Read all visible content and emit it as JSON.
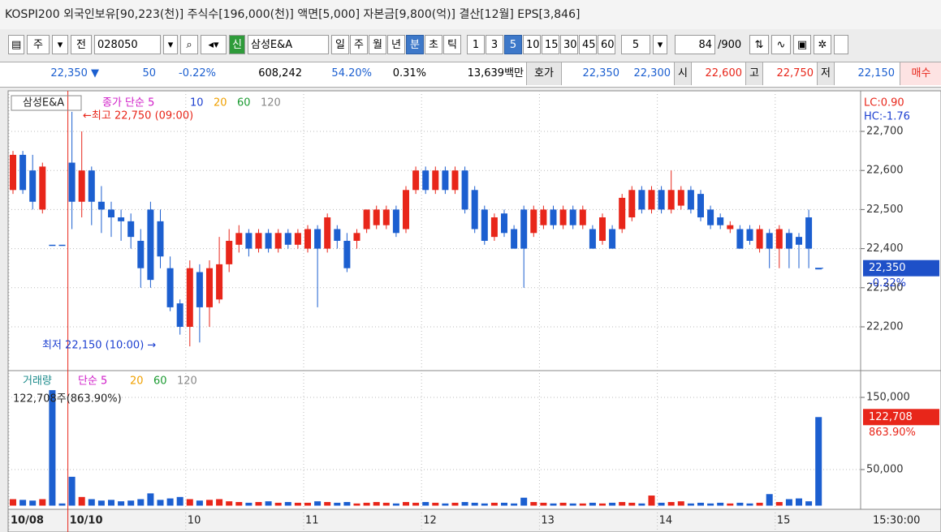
{
  "header": {
    "title": "KOSPI200 외국인보유[90,223(천)] 주식수[196,000(천)] 액면[5,000] 자본금[9,800(억)] 결산[12월] EPS[3,846]"
  },
  "toolbar": {
    "market": "주",
    "mode": "전",
    "code": "028050",
    "badge": "신",
    "name": "삼성E&A",
    "periods": [
      "일",
      "주",
      "월",
      "년",
      "분",
      "초",
      "틱"
    ],
    "selected_period": "분",
    "intervals": [
      "1",
      "3",
      "5",
      "10",
      "15",
      "30",
      "45",
      "60"
    ],
    "selected_interval": "5",
    "count": "5",
    "view": "84",
    "total": "/900"
  },
  "quote": {
    "price": "22,350 ▼",
    "change": "50",
    "change_pct": "-0.22%",
    "volume": "608,242",
    "ratio": "54.20%",
    "turnover": "0.31%",
    "amount": "13,639백만",
    "ask_label": "호가",
    "ask": "22,350",
    "bid": "22,300",
    "open_label": "시",
    "open": "22,600",
    "high_label": "고",
    "high": "22,750",
    "low_label": "저",
    "low": "22,150",
    "buy": "매수"
  },
  "chart": {
    "type": "candlestick",
    "name": "삼성E&A",
    "ma_label": "종가 단순 5",
    "ma_periods": [
      "10",
      "20",
      "60",
      "120"
    ],
    "max_note": "←최고 22,750 (09:00)",
    "min_note": "최저 22,150 (10:00) →",
    "lc": "LC:0.90",
    "hc": "HC:-1.76",
    "ylim": [
      22100,
      22800
    ],
    "yticks": [
      {
        "value": 22700,
        "label": "22,700"
      },
      {
        "value": 22600,
        "label": "22,600"
      },
      {
        "value": 22500,
        "label": "22,500"
      },
      {
        "value": 22400,
        "label": "22,400"
      },
      {
        "value": 22300,
        "label": "22,300"
      },
      {
        "value": 22200,
        "label": "22,200"
      }
    ],
    "current": {
      "value": 22350,
      "label": "22,350",
      "pct": "-0.22%"
    },
    "up_color": "#e8261a",
    "down_color": "#1c5fd0",
    "candles": [
      [
        22550,
        22650,
        22540,
        22640
      ],
      [
        22640,
        22650,
        22540,
        22550
      ],
      [
        22600,
        22640,
        22500,
        22520
      ],
      [
        22500,
        22620,
        22490,
        22610
      ],
      [
        22410,
        22410,
        22410,
        22410
      ],
      [
        22410,
        22410,
        22410,
        22410
      ],
      [
        22620,
        22750,
        22450,
        22520
      ],
      [
        22520,
        22700,
        22480,
        22600
      ],
      [
        22600,
        22610,
        22460,
        22520
      ],
      [
        22520,
        22560,
        22440,
        22500
      ],
      [
        22500,
        22520,
        22430,
        22480
      ],
      [
        22480,
        22500,
        22420,
        22470
      ],
      [
        22470,
        22490,
        22400,
        22430
      ],
      [
        22420,
        22450,
        22300,
        22350
      ],
      [
        22500,
        22520,
        22300,
        22320
      ],
      [
        22470,
        22500,
        22350,
        22380
      ],
      [
        22350,
        22380,
        22240,
        22250
      ],
      [
        22260,
        22270,
        22180,
        22200
      ],
      [
        22200,
        22370,
        22150,
        22350
      ],
      [
        22340,
        22360,
        22160,
        22250
      ],
      [
        22250,
        22370,
        22200,
        22350
      ],
      [
        22270,
        22430,
        22260,
        22360
      ],
      [
        22360,
        22450,
        22340,
        22420
      ],
      [
        22410,
        22460,
        22390,
        22440
      ],
      [
        22440,
        22450,
        22380,
        22400
      ],
      [
        22400,
        22450,
        22390,
        22440
      ],
      [
        22440,
        22450,
        22390,
        22400
      ],
      [
        22400,
        22450,
        22390,
        22440
      ],
      [
        22440,
        22450,
        22400,
        22410
      ],
      [
        22410,
        22450,
        22400,
        22440
      ],
      [
        22400,
        22460,
        22390,
        22450
      ],
      [
        22450,
        22460,
        22250,
        22400
      ],
      [
        22400,
        22490,
        22390,
        22480
      ],
      [
        22450,
        22460,
        22400,
        22420
      ],
      [
        22420,
        22440,
        22340,
        22350
      ],
      [
        22420,
        22450,
        22400,
        22440
      ],
      [
        22450,
        22500,
        22440,
        22500
      ],
      [
        22460,
        22510,
        22450,
        22500
      ],
      [
        22460,
        22510,
        22450,
        22500
      ],
      [
        22500,
        22510,
        22430,
        22440
      ],
      [
        22450,
        22560,
        22440,
        22550
      ],
      [
        22550,
        22610,
        22540,
        22600
      ],
      [
        22600,
        22610,
        22540,
        22550
      ],
      [
        22550,
        22610,
        22540,
        22600
      ],
      [
        22600,
        22610,
        22540,
        22550
      ],
      [
        22550,
        22610,
        22540,
        22600
      ],
      [
        22600,
        22610,
        22490,
        22500
      ],
      [
        22550,
        22560,
        22440,
        22450
      ],
      [
        22500,
        22510,
        22410,
        22420
      ],
      [
        22430,
        22490,
        22420,
        22480
      ],
      [
        22490,
        22500,
        22430,
        22440
      ],
      [
        22450,
        22460,
        22400,
        22400
      ],
      [
        22500,
        22510,
        22300,
        22400
      ],
      [
        22440,
        22510,
        22430,
        22500
      ],
      [
        22460,
        22510,
        22450,
        22500
      ],
      [
        22500,
        22510,
        22450,
        22460
      ],
      [
        22460,
        22510,
        22450,
        22500
      ],
      [
        22500,
        22510,
        22450,
        22460
      ],
      [
        22460,
        22510,
        22450,
        22500
      ],
      [
        22450,
        22460,
        22400,
        22400
      ],
      [
        22420,
        22490,
        22410,
        22480
      ],
      [
        22450,
        22460,
        22400,
        22400
      ],
      [
        22450,
        22540,
        22440,
        22530
      ],
      [
        22480,
        22560,
        22470,
        22550
      ],
      [
        22550,
        22560,
        22490,
        22500
      ],
      [
        22500,
        22560,
        22490,
        22550
      ],
      [
        22550,
        22560,
        22490,
        22500
      ],
      [
        22500,
        22600,
        22490,
        22550
      ],
      [
        22510,
        22560,
        22500,
        22550
      ],
      [
        22550,
        22560,
        22490,
        22500
      ],
      [
        22540,
        22550,
        22470,
        22480
      ],
      [
        22500,
        22510,
        22450,
        22460
      ],
      [
        22480,
        22490,
        22450,
        22460
      ],
      [
        22450,
        22470,
        22440,
        22460
      ],
      [
        22450,
        22460,
        22400,
        22400
      ],
      [
        22450,
        22460,
        22410,
        22420
      ],
      [
        22400,
        22460,
        22390,
        22450
      ],
      [
        22440,
        22450,
        22350,
        22400
      ],
      [
        22400,
        22460,
        22350,
        22450
      ],
      [
        22440,
        22450,
        22350,
        22400
      ],
      [
        22430,
        22440,
        22350,
        22410
      ],
      [
        22480,
        22500,
        22350,
        22400
      ],
      [
        22350,
        22350,
        22350,
        22350
      ]
    ],
    "volume": {
      "label": "거래량",
      "ma_label": "단순 5",
      "ma_periods": [
        "20",
        "60",
        "120"
      ],
      "note": "122,708주(863.90%)",
      "ylim": [
        0,
        180000
      ],
      "yticks": [
        {
          "value": 150000,
          "label": "150,000"
        },
        {
          "value": 50000,
          "label": "50,000"
        }
      ],
      "last_label": "122,708",
      "last_pct": "863.90%",
      "values": [
        9000,
        8000,
        7000,
        9000,
        160000,
        3000,
        40000,
        12000,
        9000,
        7000,
        8000,
        6000,
        7000,
        9000,
        17000,
        8000,
        10000,
        12000,
        9000,
        7000,
        8000,
        9000,
        6000,
        5000,
        4000,
        5000,
        6000,
        4000,
        5000,
        4000,
        4000,
        6000,
        5000,
        4000,
        5000,
        3000,
        4000,
        5000,
        4000,
        3000,
        5000,
        4000,
        5000,
        4000,
        3000,
        4000,
        5000,
        4000,
        3000,
        4000,
        4000,
        3000,
        11000,
        5000,
        4000,
        3000,
        4000,
        3000,
        3000,
        4000,
        3000,
        4000,
        5000,
        4000,
        3000,
        14000,
        4000,
        5000,
        6000,
        3000,
        4000,
        3000,
        4000,
        3000,
        4000,
        3000,
        4000,
        16000,
        5000,
        9000,
        10000,
        6000,
        122708
      ]
    },
    "dates": [
      {
        "label": "10/08",
        "candle": 0
      },
      {
        "label": "10/10",
        "candle": 6
      },
      {
        "label": "10",
        "candle": 18
      },
      {
        "label": "11",
        "candle": 30
      },
      {
        "label": "12",
        "candle": 42
      },
      {
        "label": "13",
        "candle": 54
      },
      {
        "label": "14",
        "candle": 66
      },
      {
        "label": "15",
        "candle": 78
      }
    ],
    "time": "15:30:00"
  }
}
